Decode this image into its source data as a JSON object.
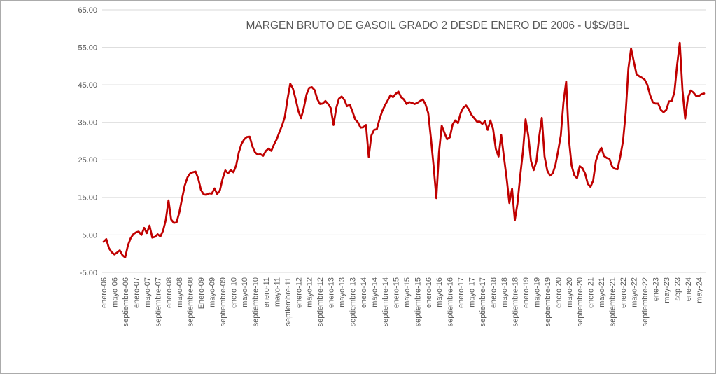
{
  "chart_data": {
    "type": "line",
    "title": "MARGEN BRUTO DE GASOIL GRADO 2 DESDE ENERO DE 2006 - U$S/BBL",
    "xlabel": "",
    "ylabel": "",
    "ylim": [
      -5,
      65
    ],
    "y_tick_labels": [
      "65.00",
      "55.00",
      "45.00",
      "35.00",
      "25.00",
      "15.00",
      "5.00",
      "-5.00"
    ],
    "grid": "horizontal",
    "legend": "none",
    "x_tick_interval": 4,
    "x_tick_labels": [
      "enero-06",
      "mayo-06",
      "septiembre-06",
      "enero-07",
      "mayo-07",
      "septiembre-07",
      "enero-08",
      "mayo-08",
      "septiembre-08",
      "Enero-09",
      "mayo-09",
      "septiembre-09",
      "enero-10",
      "mayo-10",
      "septiembre-10",
      "enero-11",
      "mayo-11",
      "septiembre-11",
      "enero-12",
      "mayo-12",
      "septiembre-12",
      "enero-13",
      "mayo-13",
      "septiembre-13",
      "enero-14",
      "mayo-14",
      "septiembre-14",
      "enero-15",
      "mayo-15",
      "septiembre-15",
      "enero-16",
      "mayo-16",
      "septiembre-16",
      "enero-17",
      "mayo-17",
      "septiembre-17",
      "enero-18",
      "mayo-18",
      "septiembre-18",
      "enero-19",
      "mayo-19",
      "septiembre-19",
      "enero-20",
      "mayo-20",
      "septiembre-20",
      "enero-21",
      "mayo-21",
      "septiembre-21",
      "enero-22",
      "mayo-22",
      "septiembre-22",
      "ene-23",
      "may-23",
      "sep-23",
      "ene-24",
      "may-24"
    ],
    "x_period": "monthly from enero-06",
    "values": [
      3.2,
      3.9,
      1.5,
      0.4,
      -0.2,
      0.3,
      0.9,
      -0.4,
      -1.0,
      2.2,
      4.1,
      5.2,
      5.7,
      5.9,
      5.0,
      6.9,
      5.5,
      7.5,
      4.3,
      4.5,
      5.2,
      4.6,
      6.1,
      9.0,
      14.2,
      9.1,
      8.2,
      8.4,
      11.0,
      14.7,
      18.1,
      20.3,
      21.4,
      21.7,
      21.9,
      20.0,
      17.0,
      15.8,
      15.7,
      16.1,
      16.0,
      17.4,
      15.9,
      16.9,
      20.0,
      22.2,
      21.4,
      22.3,
      21.7,
      23.5,
      27.0,
      29.3,
      30.5,
      31.1,
      31.2,
      28.6,
      27.0,
      26.4,
      26.5,
      26.1,
      27.4,
      28.0,
      27.4,
      29.1,
      30.5,
      32.4,
      34.2,
      36.4,
      41.2,
      45.3,
      44.0,
      41.2,
      38.0,
      36.1,
      38.8,
      42.4,
      44.2,
      44.4,
      43.6,
      41.2,
      39.9,
      40.0,
      40.7,
      39.9,
      38.8,
      34.3,
      38.8,
      41.3,
      41.9,
      41.0,
      39.3,
      39.7,
      37.9,
      35.8,
      35.0,
      33.6,
      33.7,
      34.3,
      25.8,
      31.5,
      33.0,
      33.2,
      35.8,
      38.0,
      39.5,
      40.8,
      42.2,
      41.7,
      42.6,
      43.2,
      41.7,
      41.1,
      39.9,
      40.4,
      40.2,
      39.9,
      40.2,
      40.7,
      41.1,
      39.8,
      37.5,
      30.9,
      23.3,
      14.8,
      27.0,
      34.1,
      32.2,
      30.5,
      31.0,
      34.4,
      35.5,
      34.8,
      37.5,
      38.9,
      39.5,
      38.5,
      37.0,
      36.1,
      35.2,
      35.2,
      34.6,
      35.3,
      33.0,
      35.5,
      33.2,
      27.9,
      25.9,
      31.6,
      25.7,
      20.0,
      13.5,
      17.3,
      8.9,
      13.4,
      20.7,
      27.2,
      35.8,
      31.4,
      24.7,
      22.3,
      24.6,
      31.0,
      36.2,
      25.9,
      22.2,
      20.8,
      21.4,
      23.5,
      27.3,
      31.5,
      40.3,
      45.9,
      30.5,
      23.5,
      20.9,
      20.1,
      23.3,
      22.8,
      21.4,
      18.6,
      17.8,
      19.5,
      24.8,
      26.9,
      28.2,
      26.0,
      25.5,
      25.3,
      23.2,
      22.6,
      22.5,
      25.9,
      30.0,
      37.5,
      49.4,
      54.7,
      51.2,
      47.8,
      47.3,
      46.9,
      46.4,
      45.0,
      42.3,
      40.4,
      40.0,
      40.0,
      38.3,
      37.7,
      38.3,
      40.6,
      40.7,
      43.0,
      50.3,
      56.2,
      43.5,
      36.0,
      41.5,
      43.5,
      43.0,
      42.1,
      42.0,
      42.5,
      42.7
    ],
    "colors": {
      "series_line": "#c00000",
      "gridline": "#d9d9d9",
      "axis_text": "#595959",
      "title_text": "#595959",
      "background": "#ffffff",
      "frame_border": "#ababab"
    }
  }
}
